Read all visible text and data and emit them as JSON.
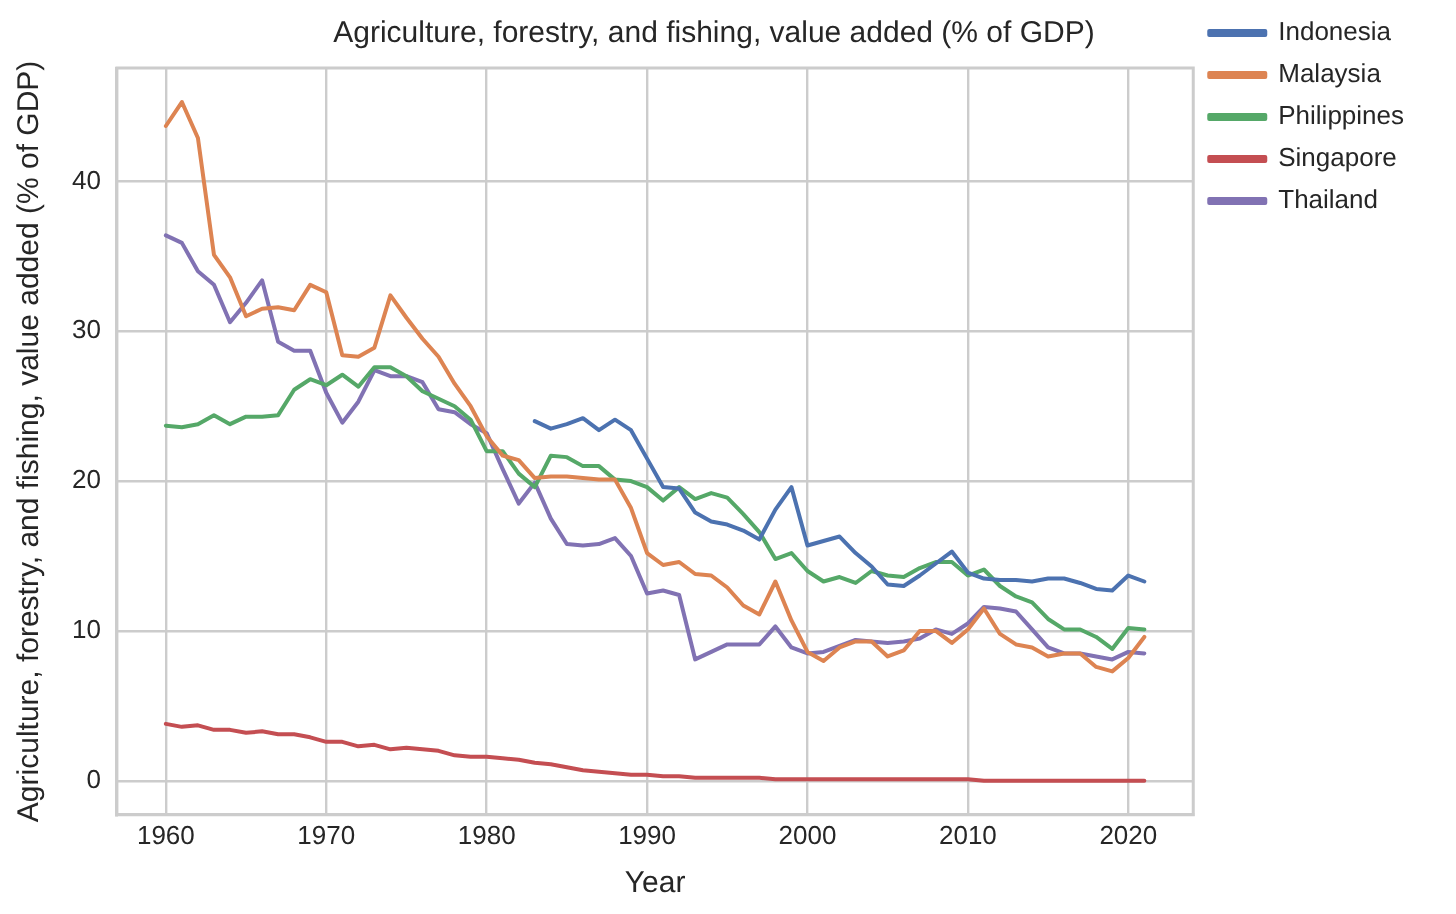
{
  "chart_data": {
    "type": "line",
    "title": "Agriculture, forestry, and fishing, value added (% of GDP)",
    "xlabel": "Year",
    "ylabel": "Agriculture, forestry, and fishing, value added (% of GDP)",
    "x": [
      1960,
      1961,
      1962,
      1963,
      1964,
      1965,
      1966,
      1967,
      1968,
      1969,
      1970,
      1971,
      1972,
      1973,
      1974,
      1975,
      1976,
      1977,
      1978,
      1979,
      1980,
      1981,
      1982,
      1983,
      1984,
      1985,
      1986,
      1987,
      1988,
      1989,
      1990,
      1991,
      1992,
      1993,
      1994,
      1995,
      1996,
      1997,
      1998,
      1999,
      2000,
      2001,
      2002,
      2003,
      2004,
      2005,
      2006,
      2007,
      2008,
      2009,
      2010,
      2011,
      2012,
      2013,
      2014,
      2015,
      2016,
      2017,
      2018,
      2019,
      2020,
      2021
    ],
    "series": [
      {
        "name": "Indonesia",
        "color": "#4c72b0",
        "values": [
          null,
          null,
          null,
          null,
          null,
          null,
          null,
          null,
          null,
          null,
          null,
          null,
          null,
          null,
          null,
          null,
          null,
          null,
          null,
          null,
          null,
          null,
          null,
          24.0,
          23.5,
          23.8,
          24.2,
          23.4,
          24.1,
          23.4,
          21.5,
          19.6,
          19.5,
          17.9,
          17.3,
          17.1,
          16.7,
          16.1,
          18.1,
          19.6,
          15.7,
          16.0,
          16.3,
          15.2,
          14.3,
          13.1,
          13.0,
          13.7,
          14.5,
          15.3,
          13.9,
          13.5,
          13.4,
          13.4,
          13.3,
          13.5,
          13.5,
          13.2,
          12.8,
          12.7,
          13.7,
          13.3
        ]
      },
      {
        "name": "Malaysia",
        "color": "#dd8452",
        "values": [
          43.7,
          45.3,
          42.9,
          35.1,
          33.6,
          31.0,
          31.5,
          31.6,
          31.4,
          33.1,
          32.6,
          28.4,
          28.3,
          28.9,
          32.4,
          30.9,
          29.5,
          28.3,
          26.5,
          25.0,
          23.0,
          21.7,
          21.4,
          20.2,
          20.3,
          20.3,
          20.2,
          20.1,
          20.1,
          18.2,
          15.2,
          14.4,
          14.6,
          13.8,
          13.7,
          12.9,
          11.7,
          11.1,
          13.3,
          10.7,
          8.6,
          8.0,
          8.9,
          9.3,
          9.3,
          8.3,
          8.7,
          10.0,
          10.0,
          9.2,
          10.1,
          11.5,
          9.8,
          9.1,
          8.9,
          8.3,
          8.5,
          8.5,
          7.6,
          7.3,
          8.2,
          9.6
        ]
      },
      {
        "name": "Philippines",
        "color": "#55a868",
        "values": [
          23.7,
          23.6,
          23.8,
          24.4,
          23.8,
          24.3,
          24.3,
          24.4,
          26.1,
          26.8,
          26.4,
          27.1,
          26.3,
          27.6,
          27.6,
          27.0,
          26.0,
          25.5,
          25.0,
          24.1,
          22.0,
          22.0,
          20.5,
          19.6,
          21.7,
          21.6,
          21.0,
          21.0,
          20.1,
          20.0,
          19.6,
          18.7,
          19.6,
          18.8,
          19.2,
          18.9,
          17.8,
          16.6,
          14.8,
          15.2,
          14.0,
          13.3,
          13.6,
          13.2,
          14.0,
          13.7,
          13.6,
          14.2,
          14.6,
          14.6,
          13.7,
          14.1,
          13.0,
          12.3,
          11.9,
          10.8,
          10.1,
          10.1,
          9.6,
          8.8,
          10.2,
          10.1
        ]
      },
      {
        "name": "Singapore",
        "color": "#c44e52",
        "values": [
          3.8,
          3.6,
          3.7,
          3.4,
          3.4,
          3.2,
          3.3,
          3.1,
          3.1,
          2.9,
          2.6,
          2.6,
          2.3,
          2.4,
          2.1,
          2.2,
          2.1,
          2.0,
          1.7,
          1.6,
          1.6,
          1.5,
          1.4,
          1.2,
          1.1,
          0.9,
          0.7,
          0.6,
          0.5,
          0.4,
          0.4,
          0.3,
          0.3,
          0.2,
          0.2,
          0.2,
          0.2,
          0.2,
          0.1,
          0.1,
          0.1,
          0.1,
          0.1,
          0.1,
          0.1,
          0.1,
          0.1,
          0.1,
          0.1,
          0.1,
          0.1,
          0.0,
          0.0,
          0.0,
          0.0,
          0.0,
          0.0,
          0.0,
          0.0,
          0.0,
          0.0,
          0.0
        ]
      },
      {
        "name": "Thailand",
        "color": "#8172b3",
        "values": [
          36.4,
          35.9,
          34.0,
          33.1,
          30.6,
          31.9,
          33.4,
          29.3,
          28.7,
          28.7,
          25.9,
          23.9,
          25.3,
          27.4,
          27.0,
          27.0,
          26.6,
          24.8,
          24.6,
          23.8,
          23.2,
          20.8,
          18.5,
          19.9,
          17.5,
          15.8,
          15.7,
          15.8,
          16.2,
          15.0,
          12.5,
          12.7,
          12.4,
          8.1,
          8.6,
          9.1,
          9.1,
          9.1,
          10.3,
          8.9,
          8.5,
          8.6,
          9.0,
          9.4,
          9.3,
          9.2,
          9.3,
          9.5,
          10.1,
          9.8,
          10.5,
          11.6,
          11.5,
          11.3,
          10.1,
          8.9,
          8.5,
          8.5,
          8.3,
          8.1,
          8.6,
          8.5
        ]
      }
    ],
    "xlim": [
      1956.95,
      2024.05
    ],
    "xticks": [
      1960,
      1970,
      1980,
      1990,
      2000,
      2010,
      2020
    ],
    "ylim": [
      -2.27,
      47.57
    ],
    "yticks": [
      0,
      10,
      20,
      30,
      40
    ],
    "grid": true,
    "legend": "top right",
    "marker": "none",
    "line_style": "solid"
  }
}
